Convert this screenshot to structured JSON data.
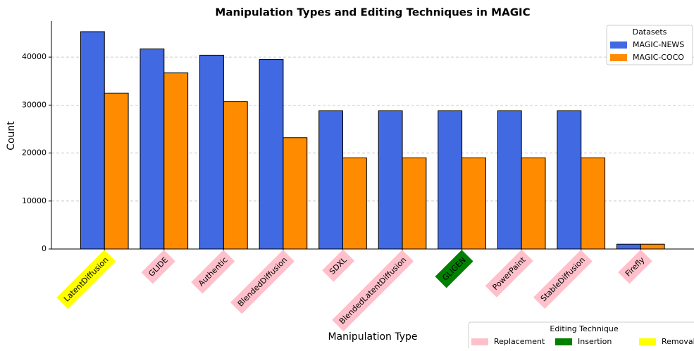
{
  "chart_data": {
    "type": "bar",
    "title": "Manipulation Types and Editing Techniques in MAGIC",
    "x_label": "Manipulation Type",
    "y_label": "Count",
    "categories": [
      "LatentDiffusion",
      "GLIDE",
      "Authentic",
      "BlendedDiffusion",
      "SDXL",
      "BlendedLatentDiffusion",
      "GLIGEN",
      "PowerPaint",
      "StableDiffusion",
      "Firefly"
    ],
    "series": [
      {
        "name": "MAGIC-NEWS",
        "color": "#4169e1",
        "values": [
          45300,
          41700,
          40400,
          39500,
          28800,
          28800,
          28800,
          28800,
          28800,
          1000
        ]
      },
      {
        "name": "MAGIC-COCO",
        "color": "#ff8c00",
        "values": [
          32500,
          36700,
          30700,
          23200,
          19000,
          19000,
          19000,
          19000,
          19000,
          1000
        ]
      }
    ],
    "legend_title": "Datasets",
    "legend_position": "upper right",
    "techniques_title": "Editing Technique",
    "techniques": [
      {
        "name": "Replacement",
        "color": "#ffc0cb"
      },
      {
        "name": "Insertion",
        "color": "#008000"
      },
      {
        "name": "Removal",
        "color": "#ffff00"
      }
    ],
    "category_technique": [
      2,
      0,
      0,
      0,
      0,
      0,
      1,
      0,
      0,
      0
    ],
    "ylim": [
      0,
      47500
    ],
    "yticks": [
      0,
      10000,
      20000,
      30000,
      40000
    ],
    "grid": true
  }
}
